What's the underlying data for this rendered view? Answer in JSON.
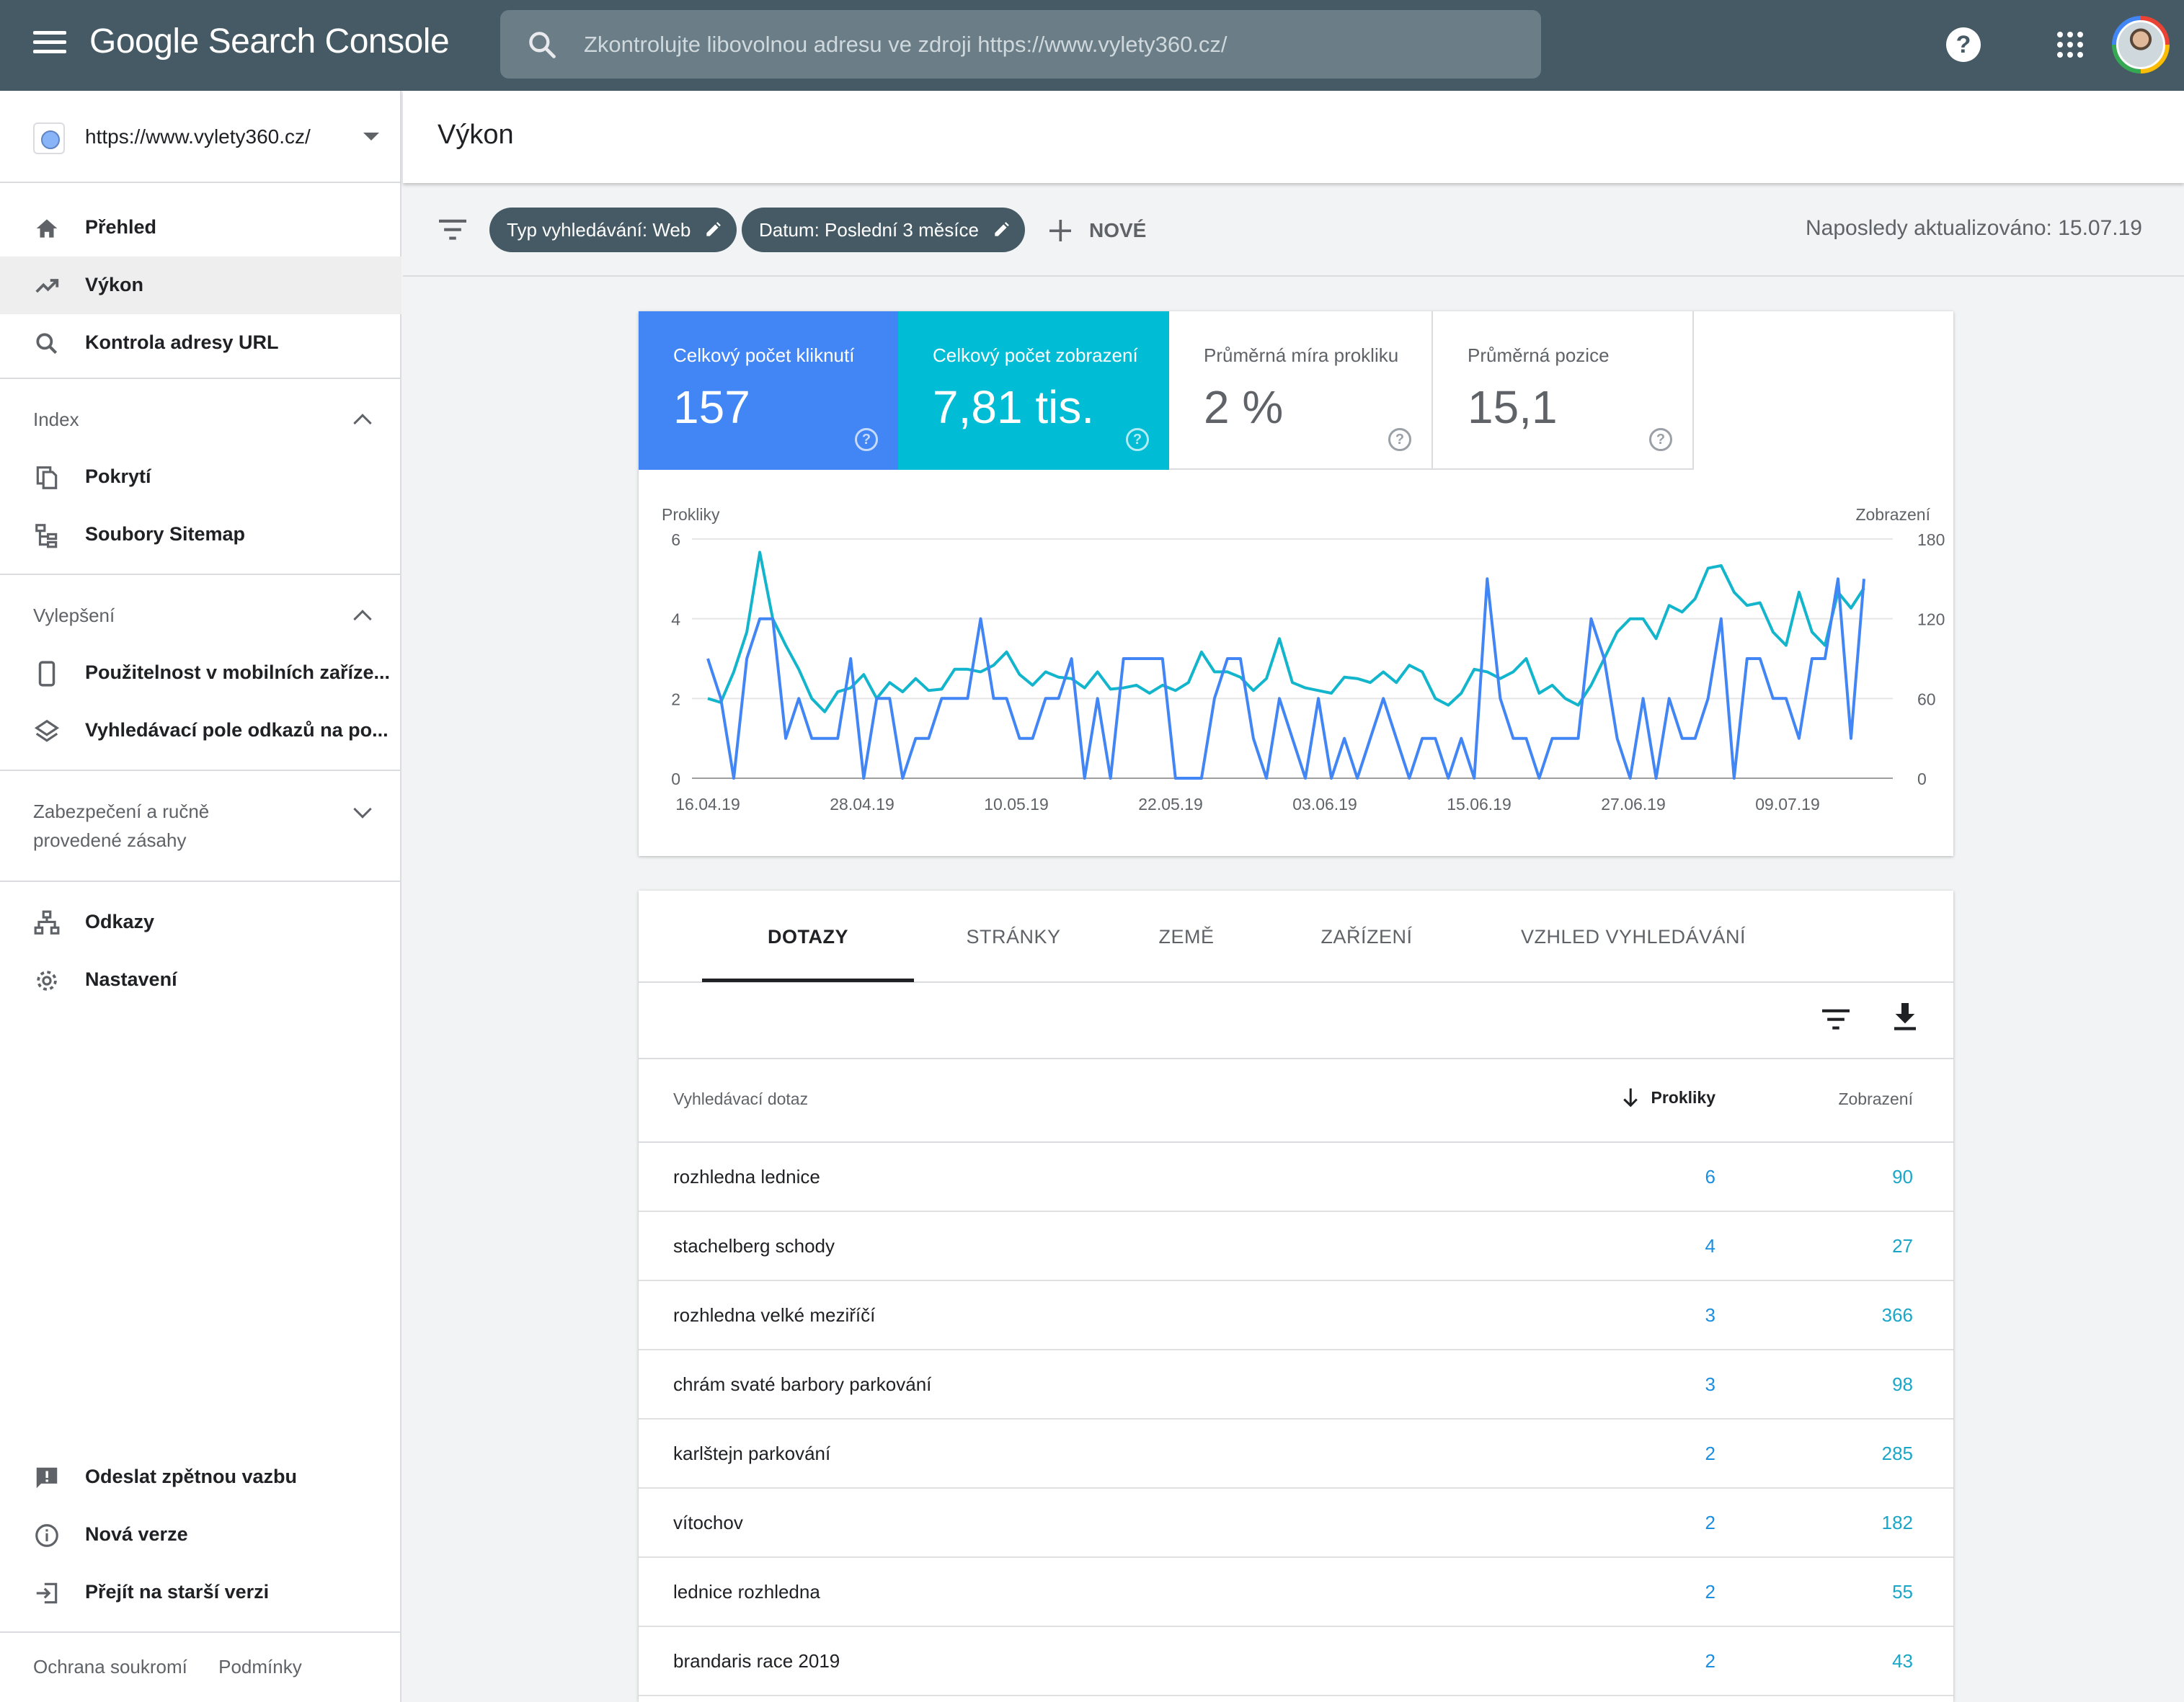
{
  "app": {
    "title": "Google Search Console",
    "search_placeholder": "Zkontrolujte libovolnou adresu ve zdroji https://www.vylety360.cz/"
  },
  "sidebar": {
    "property_url": "https://www.vylety360.cz/",
    "nav_top": [
      {
        "label": "Přehled",
        "icon": "home-icon"
      },
      {
        "label": "Výkon",
        "icon": "trending-up-icon"
      },
      {
        "label": "Kontrola adresy URL",
        "icon": "search-icon"
      }
    ],
    "index": {
      "heading": "Index",
      "items": [
        {
          "label": "Pokrytí",
          "icon": "copy-icon"
        },
        {
          "label": "Soubory Sitemap",
          "icon": "sitemap-icon"
        }
      ]
    },
    "enhancements": {
      "heading": "Vylepšení",
      "items": [
        {
          "label": "Použitelnost v mobilních zaříze...",
          "icon": "smartphone-icon"
        },
        {
          "label": "Vyhledávací pole odkazů na po...",
          "icon": "layers-icon"
        }
      ]
    },
    "security": {
      "heading_line1": "Zabezpečení a ručně",
      "heading_line2": "provedené zásahy"
    },
    "nav_bottom": [
      {
        "label": "Odkazy",
        "icon": "links-icon"
      },
      {
        "label": "Nastavení",
        "icon": "gear-icon"
      }
    ],
    "footer_nav": [
      {
        "label": "Odeslat zpětnou vazbu",
        "icon": "feedback-icon"
      },
      {
        "label": "Nová verze",
        "icon": "info-icon"
      },
      {
        "label": "Přejít na starší verzi",
        "icon": "exit-icon"
      }
    ],
    "legal": {
      "privacy": "Ochrana soukromí",
      "terms": "Podmínky"
    }
  },
  "page": {
    "title": "Výkon",
    "filters": [
      {
        "label": "Typ vyhledávání: Web"
      },
      {
        "label": "Datum: Poslední 3 měsíce"
      }
    ],
    "new_label": "NOVÉ",
    "updated": "Naposledy aktualizováno: 15.07.19"
  },
  "metrics": [
    {
      "label": "Celkový počet kliknutí",
      "value": "157",
      "selected": true,
      "color": "#4285f4"
    },
    {
      "label": "Celkový počet zobrazení",
      "value": "7,81 tis.",
      "selected": true,
      "color": "#00bcd4"
    },
    {
      "label": "Průměrná míra prokliku",
      "value": "2 %",
      "selected": false
    },
    {
      "label": "Průměrná pozice",
      "value": "15,1",
      "selected": false
    }
  ],
  "chart_data": {
    "type": "line",
    "ylabel_left": "Prokliky",
    "ylabel_right": "Zobrazení",
    "y_left_ticks": [
      "6",
      "4",
      "2",
      "0"
    ],
    "y_right_ticks": [
      "180",
      "120",
      "60",
      "0"
    ],
    "ylim_left": [
      0,
      6
    ],
    "ylim_right": [
      0,
      180
    ],
    "x_tick_labels": [
      "16.04.19",
      "28.04.19",
      "10.05.19",
      "22.05.19",
      "03.06.19",
      "15.06.19",
      "27.06.19",
      "09.07.19"
    ],
    "grid": true,
    "series": [
      {
        "name": "Prokliky",
        "axis": "left",
        "color": "#4285f4",
        "values": [
          3,
          2,
          0,
          3,
          4,
          4,
          1,
          2,
          1,
          1,
          1,
          3,
          0,
          2,
          2,
          0,
          1,
          1,
          2,
          2,
          2,
          4,
          2,
          2,
          1,
          1,
          2,
          2,
          3,
          0,
          2,
          0,
          3,
          3,
          3,
          3,
          0,
          0,
          0,
          2,
          3,
          3,
          1,
          0,
          2,
          1,
          0,
          2,
          0,
          1,
          0,
          1,
          2,
          1,
          0,
          1,
          1,
          0,
          1,
          0,
          5,
          2,
          1,
          1,
          0,
          1,
          1,
          1,
          4,
          3,
          1,
          0,
          2,
          0,
          2,
          1,
          1,
          2,
          4,
          0,
          3,
          3,
          2,
          2,
          1,
          3,
          3,
          5,
          1,
          5
        ]
      },
      {
        "name": "Zobrazení",
        "axis": "right",
        "color": "#12b5cb",
        "values": [
          60,
          57,
          80,
          110,
          170,
          120,
          100,
          82,
          60,
          50,
          65,
          68,
          78,
          60,
          72,
          65,
          75,
          66,
          67,
          82,
          82,
          80,
          85,
          95,
          78,
          70,
          80,
          76,
          75,
          68,
          80,
          67,
          68,
          70,
          64,
          70,
          66,
          72,
          95,
          80,
          80,
          76,
          66,
          75,
          105,
          72,
          68,
          66,
          64,
          76,
          75,
          72,
          80,
          72,
          85,
          80,
          60,
          55,
          64,
          82,
          80,
          75,
          80,
          90,
          64,
          70,
          60,
          55,
          70,
          90,
          110,
          120,
          120,
          105,
          130,
          125,
          135,
          158,
          160,
          140,
          130,
          132,
          110,
          100,
          140,
          110,
          100,
          140,
          128,
          143
        ]
      }
    ]
  },
  "table": {
    "tabs": [
      "DOTAZY",
      "STRÁNKY",
      "ZEMĚ",
      "ZAŘÍZENÍ",
      "VZHLED VYHLEDÁVÁNÍ"
    ],
    "columns": {
      "query": "Vyhledávací dotaz",
      "clicks": "Prokliky",
      "impressions": "Zobrazení"
    },
    "rows": [
      {
        "query": "rozhledna lednice",
        "clicks": "6",
        "impressions": "90"
      },
      {
        "query": "stachelberg schody",
        "clicks": "4",
        "impressions": "27"
      },
      {
        "query": "rozhledna velké meziříčí",
        "clicks": "3",
        "impressions": "366"
      },
      {
        "query": "chrám svaté barbory parkování",
        "clicks": "3",
        "impressions": "98"
      },
      {
        "query": "karlštejn parkování",
        "clicks": "2",
        "impressions": "285"
      },
      {
        "query": "vítochov",
        "clicks": "2",
        "impressions": "182"
      },
      {
        "query": "lednice rozhledna",
        "clicks": "2",
        "impressions": "55"
      },
      {
        "query": "brandaris race 2019",
        "clicks": "2",
        "impressions": "43"
      }
    ]
  }
}
